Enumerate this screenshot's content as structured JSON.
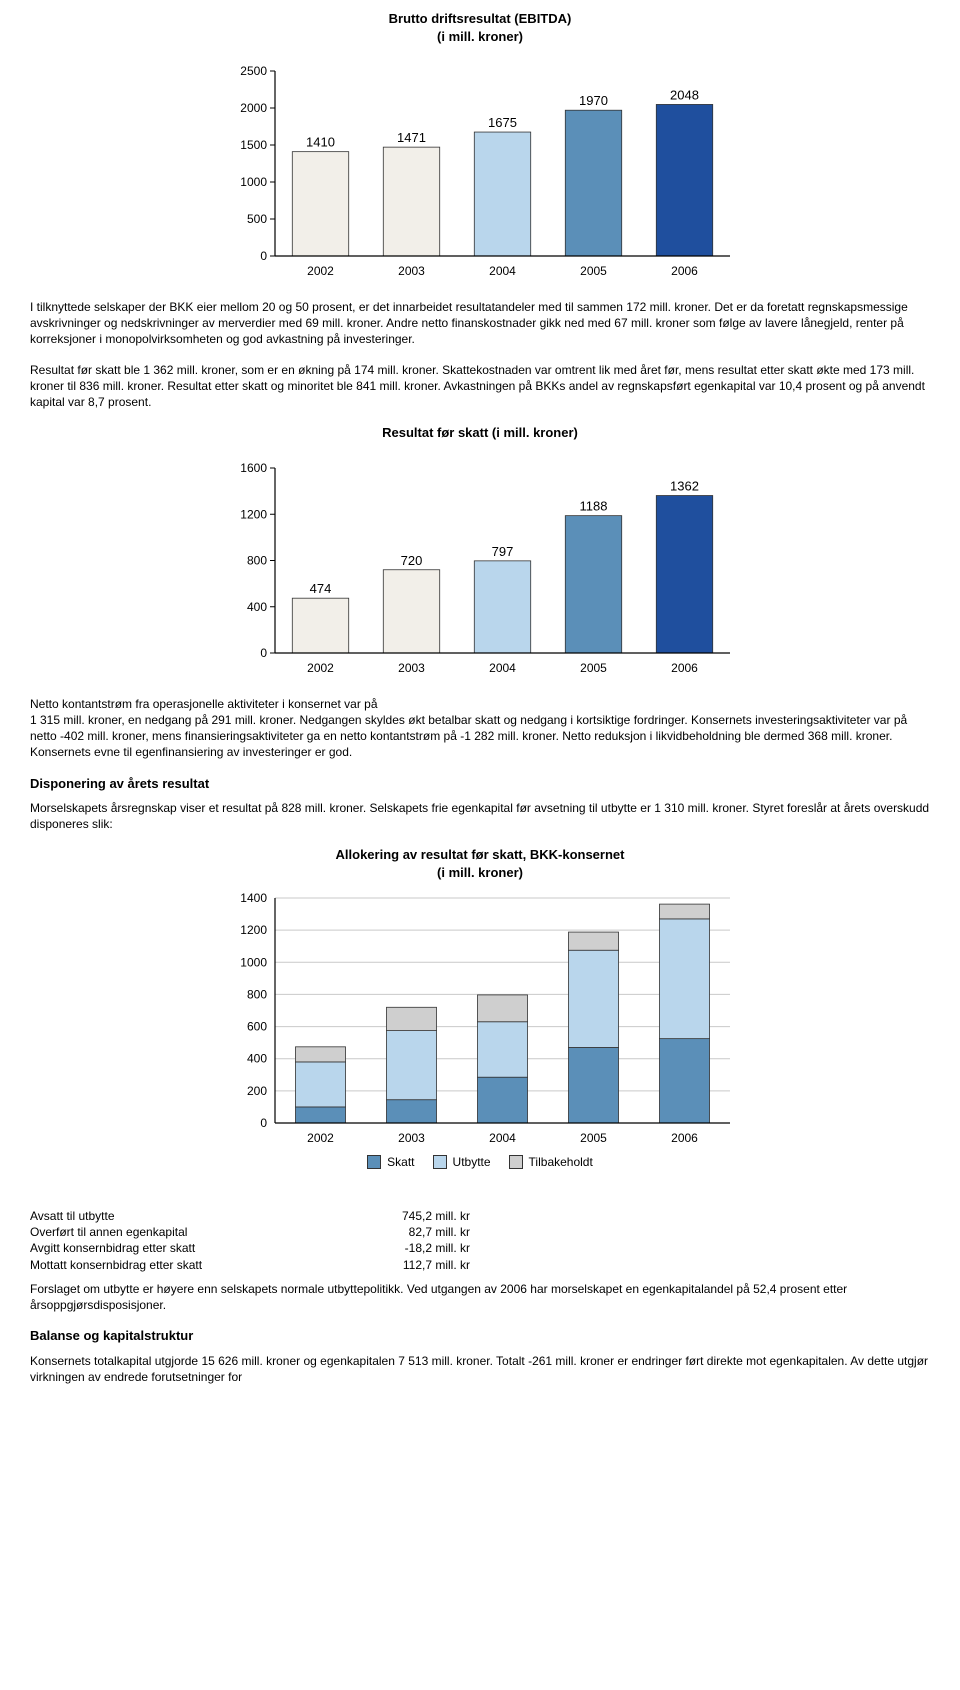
{
  "chart1": {
    "title_line1": "Brutto driftsresultat (EBITDA)",
    "title_line2": "(i mill. kroner)",
    "type": "bar",
    "categories": [
      "2002",
      "2003",
      "2004",
      "2005",
      "2006"
    ],
    "values": [
      1410,
      1471,
      1675,
      1970,
      2048
    ],
    "bar_colors": [
      "#f2efe9",
      "#f2efe9",
      "#b9d6ec",
      "#5b8fb8",
      "#1f4f9e"
    ],
    "ylim": [
      0,
      2500
    ],
    "ytick_step": 500,
    "label_fontsize": 12,
    "axis_color": "#000000",
    "background_color": "#ffffff",
    "bar_width": 0.62
  },
  "para1": "I tilknyttede selskaper der BKK eier mellom 20 og 50 prosent, er det innarbeidet resultatandeler med til sammen 172 mill. kroner. Det er da foretatt regnskapsmessige avskrivninger og nedskrivninger av merverdier med 69 mill. kroner. Andre netto finanskostnader gikk ned med 67 mill. kroner som følge av lavere lånegjeld, renter på korreksjoner i monopolvirksomheten og god avkastning på investeringer.",
  "para2": "Resultat før skatt ble 1 362 mill. kroner, som er en økning på 174 mill. kroner. Skattekostnaden var omtrent lik med året før, mens resultat etter skatt økte med 173 mill. kroner til 836 mill. kroner. Resultat etter skatt og minoritet ble 841 mill. kroner. Avkastningen på BKKs andel av regnskapsført egenkapital var 10,4 prosent og på anvendt kapital var 8,7 prosent.",
  "chart2": {
    "title": "Resultat før skatt (i mill. kroner)",
    "type": "bar",
    "categories": [
      "2002",
      "2003",
      "2004",
      "2005",
      "2006"
    ],
    "values": [
      474,
      720,
      797,
      1188,
      1362
    ],
    "bar_colors": [
      "#f2efe9",
      "#f2efe9",
      "#b9d6ec",
      "#5b8fb8",
      "#1f4f9e"
    ],
    "ylim": [
      0,
      1600
    ],
    "ytick_step": 400,
    "axis_color": "#000000",
    "background_color": "#ffffff",
    "bar_width": 0.62
  },
  "para3": "Netto kontantstrøm fra operasjonelle aktiviteter i konsernet var på",
  "para3b": "1 315 mill. kroner, en nedgang på 291 mill. kroner. Nedgangen skyldes økt betalbar skatt og nedgang i kortsiktige fordringer. Konsernets investeringsaktiviteter var på netto -402 mill. kroner, mens finansieringsaktiviteter ga en netto kontantstrøm på -1 282 mill. kroner. Netto reduksjon i likvidbeholdning ble dermed 368 mill. kroner. Konsernets evne til egenfinansiering av investeringer er god.",
  "disp_head": "Disponering av årets resultat",
  "para4": "Morselskapets årsregnskap viser et resultat på 828 mill. kroner. Selskapets frie egenkapital før avsetning til utbytte er 1 310 mill. kroner. Styret foreslår at årets overskudd disponeres slik:",
  "chart3": {
    "title_line1": "Allokering av resultat før skatt, BKK-konsernet",
    "title_line2": "(i mill. kroner)",
    "type": "stacked-bar",
    "categories": [
      "2002",
      "2003",
      "2004",
      "2005",
      "2006"
    ],
    "series": [
      {
        "name": "Skatt",
        "color": "#5b8fb8",
        "values": [
          100,
          145,
          285,
          470,
          525
        ]
      },
      {
        "name": "Utbytte",
        "color": "#b9d6ec",
        "values": [
          280,
          430,
          345,
          605,
          745
        ]
      },
      {
        "name": "Tilbakeholdt",
        "color": "#cfcfcf",
        "values": [
          94,
          145,
          167,
          113,
          92
        ]
      }
    ],
    "ylim": [
      0,
      1400
    ],
    "ytick_step": 200,
    "axis_color": "#000000",
    "grid_color": "#c9c9c9",
    "background_color": "#ffffff",
    "bar_width": 0.55,
    "legend_labels": [
      "Skatt",
      "Utbytte",
      "Tilbakeholdt"
    ],
    "legend_colors": [
      "#5b8fb8",
      "#b9d6ec",
      "#cfcfcf"
    ]
  },
  "alloc": [
    {
      "label": "Avsatt til utbytte",
      "value": "745,2 mill. kr"
    },
    {
      "label": "Overført til annen egenkapital",
      "value": "82,7 mill. kr"
    },
    {
      "label": "Avgitt konsernbidrag etter skatt",
      "value": "-18,2 mill. kr"
    },
    {
      "label": "Mottatt konsernbidrag etter skatt",
      "value": "112,7 mill. kr"
    }
  ],
  "para5": "Forslaget om utbytte er høyere enn selskapets normale utbyttepolitikk. Ved utgangen av 2006 har morselskapet en egenkapitalandel på 52,4 prosent etter årsoppgjørsdisposisjoner.",
  "balanse_head": "Balanse og kapitalstruktur",
  "para6": "Konsernets totalkapital utgjorde 15 626 mill. kroner og egenkapitalen 7 513 mill. kroner. Totalt -261 mill. kroner er endringer ført direkte mot egenkapitalen. Av dette utgjør virkningen av endrede forutsetninger for"
}
